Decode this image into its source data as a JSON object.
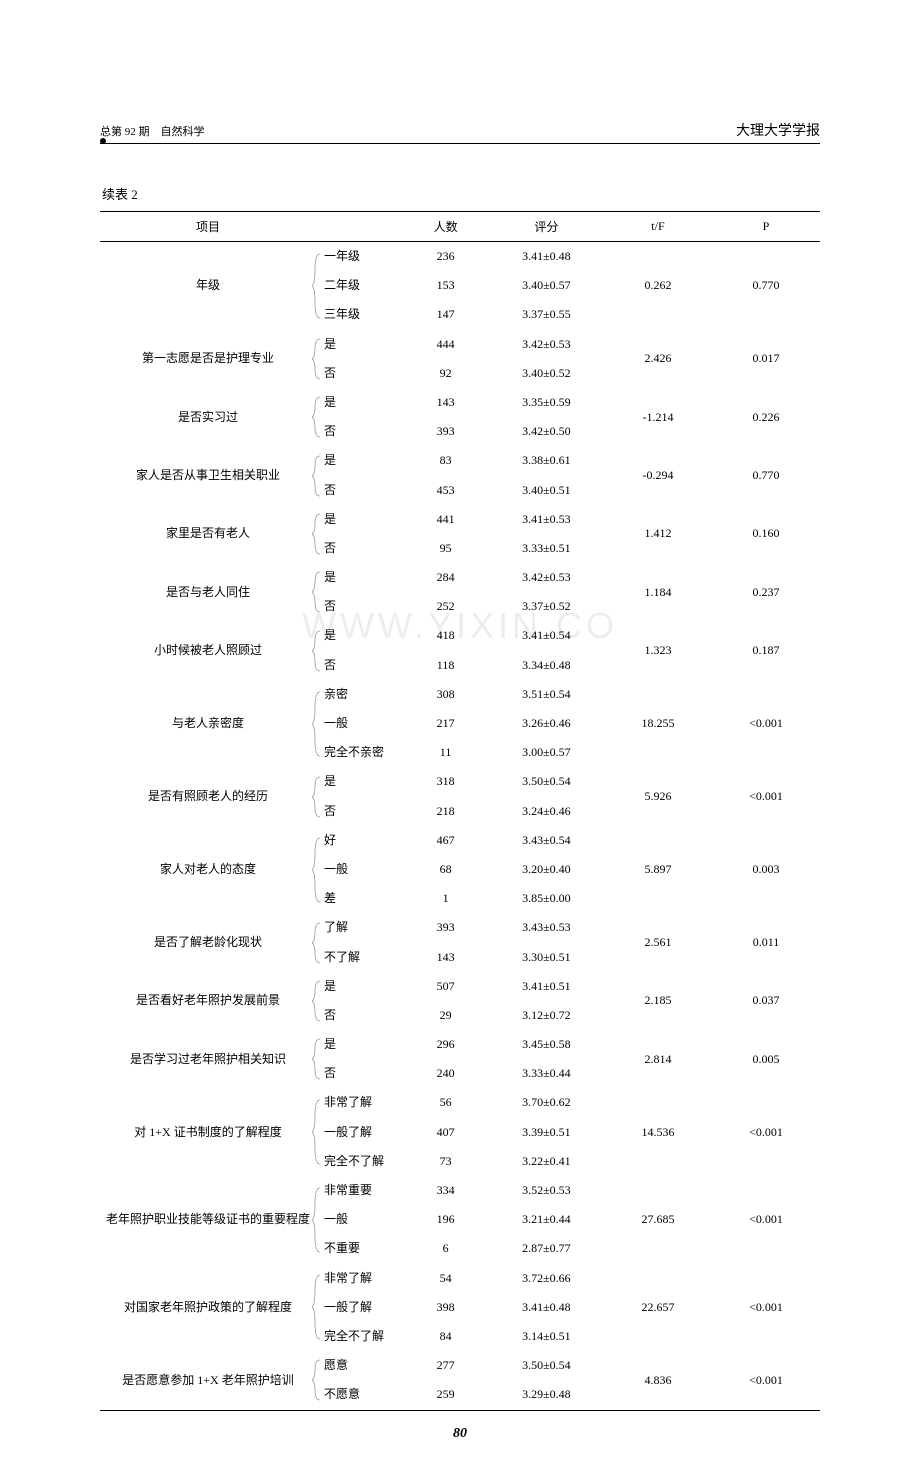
{
  "header": {
    "left": "总第 92 期　自然科学",
    "right": "大理大学学报"
  },
  "caption": "续表 2",
  "watermark": "WWW.YIXIN.CO",
  "page_number": "80",
  "columns": [
    "项目",
    "",
    "人数",
    "评分",
    "t/F",
    "P"
  ],
  "groups": [
    {
      "item": "年级",
      "tf": "0.262",
      "p": "0.770",
      "options": [
        {
          "label": "一年级",
          "count": "236",
          "score": "3.41±0.48"
        },
        {
          "label": "二年级",
          "count": "153",
          "score": "3.40±0.57"
        },
        {
          "label": "三年级",
          "count": "147",
          "score": "3.37±0.55"
        }
      ]
    },
    {
      "item": "第一志愿是否是护理专业",
      "tf": "2.426",
      "p": "0.017",
      "options": [
        {
          "label": "是",
          "count": "444",
          "score": "3.42±0.53"
        },
        {
          "label": "否",
          "count": "92",
          "score": "3.40±0.52"
        }
      ]
    },
    {
      "item": "是否实习过",
      "tf": "-1.214",
      "p": "0.226",
      "options": [
        {
          "label": "是",
          "count": "143",
          "score": "3.35±0.59"
        },
        {
          "label": "否",
          "count": "393",
          "score": "3.42±0.50"
        }
      ]
    },
    {
      "item": "家人是否从事卫生相关职业",
      "tf": "-0.294",
      "p": "0.770",
      "options": [
        {
          "label": "是",
          "count": "83",
          "score": "3.38±0.61"
        },
        {
          "label": "否",
          "count": "453",
          "score": "3.40±0.51"
        }
      ]
    },
    {
      "item": "家里是否有老人",
      "tf": "1.412",
      "p": "0.160",
      "options": [
        {
          "label": "是",
          "count": "441",
          "score": "3.41±0.53"
        },
        {
          "label": "否",
          "count": "95",
          "score": "3.33±0.51"
        }
      ]
    },
    {
      "item": "是否与老人同住",
      "tf": "1.184",
      "p": "0.237",
      "options": [
        {
          "label": "是",
          "count": "284",
          "score": "3.42±0.53"
        },
        {
          "label": "否",
          "count": "252",
          "score": "3.37±0.52"
        }
      ]
    },
    {
      "item": "小时候被老人照顾过",
      "tf": "1.323",
      "p": "0.187",
      "options": [
        {
          "label": "是",
          "count": "418",
          "score": "3.41±0.54"
        },
        {
          "label": "否",
          "count": "118",
          "score": "3.34±0.48"
        }
      ]
    },
    {
      "item": "与老人亲密度",
      "tf": "18.255",
      "p": "<0.001",
      "options": [
        {
          "label": "亲密",
          "count": "308",
          "score": "3.51±0.54"
        },
        {
          "label": "一般",
          "count": "217",
          "score": "3.26±0.46"
        },
        {
          "label": "完全不亲密",
          "count": "11",
          "score": "3.00±0.57"
        }
      ]
    },
    {
      "item": "是否有照顾老人的经历",
      "tf": "5.926",
      "p": "<0.001",
      "options": [
        {
          "label": "是",
          "count": "318",
          "score": "3.50±0.54"
        },
        {
          "label": "否",
          "count": "218",
          "score": "3.24±0.46"
        }
      ]
    },
    {
      "item": "家人对老人的态度",
      "tf": "5.897",
      "p": "0.003",
      "options": [
        {
          "label": "好",
          "count": "467",
          "score": "3.43±0.54"
        },
        {
          "label": "一般",
          "count": "68",
          "score": "3.20±0.40"
        },
        {
          "label": "差",
          "count": "1",
          "score": "3.85±0.00"
        }
      ]
    },
    {
      "item": "是否了解老龄化现状",
      "tf": "2.561",
      "p": "0.011",
      "options": [
        {
          "label": "了解",
          "count": "393",
          "score": "3.43±0.53"
        },
        {
          "label": "不了解",
          "count": "143",
          "score": "3.30±0.51"
        }
      ]
    },
    {
      "item": "是否看好老年照护发展前景",
      "tf": "2.185",
      "p": "0.037",
      "options": [
        {
          "label": "是",
          "count": "507",
          "score": "3.41±0.51"
        },
        {
          "label": "否",
          "count": "29",
          "score": "3.12±0.72"
        }
      ]
    },
    {
      "item": "是否学习过老年照护相关知识",
      "tf": "2.814",
      "p": "0.005",
      "options": [
        {
          "label": "是",
          "count": "296",
          "score": "3.45±0.58"
        },
        {
          "label": "否",
          "count": "240",
          "score": "3.33±0.44"
        }
      ]
    },
    {
      "item": "对 1+X 证书制度的了解程度",
      "tf": "14.536",
      "p": "<0.001",
      "options": [
        {
          "label": "非常了解",
          "count": "56",
          "score": "3.70±0.62"
        },
        {
          "label": "一般了解",
          "count": "407",
          "score": "3.39±0.51"
        },
        {
          "label": "完全不了解",
          "count": "73",
          "score": "3.22±0.41"
        }
      ]
    },
    {
      "item": "老年照护职业技能等级证书的重要程度",
      "tf": "27.685",
      "p": "<0.001",
      "options": [
        {
          "label": "非常重要",
          "count": "334",
          "score": "3.52±0.53"
        },
        {
          "label": "一般",
          "count": "196",
          "score": "3.21±0.44"
        },
        {
          "label": "不重要",
          "count": "6",
          "score": "2.87±0.77"
        }
      ]
    },
    {
      "item": "对国家老年照护政策的了解程度",
      "tf": "22.657",
      "p": "<0.001",
      "options": [
        {
          "label": "非常了解",
          "count": "54",
          "score": "3.72±0.66"
        },
        {
          "label": "一般了解",
          "count": "398",
          "score": "3.41±0.48"
        },
        {
          "label": "完全不了解",
          "count": "84",
          "score": "3.14±0.51"
        }
      ]
    },
    {
      "item": "是否愿意参加 1+X 老年照护培训",
      "tf": "4.836",
      "p": "<0.001",
      "options": [
        {
          "label": "愿意",
          "count": "277",
          "score": "3.50±0.54"
        },
        {
          "label": "不愿意",
          "count": "259",
          "score": "3.29±0.48"
        }
      ]
    }
  ]
}
